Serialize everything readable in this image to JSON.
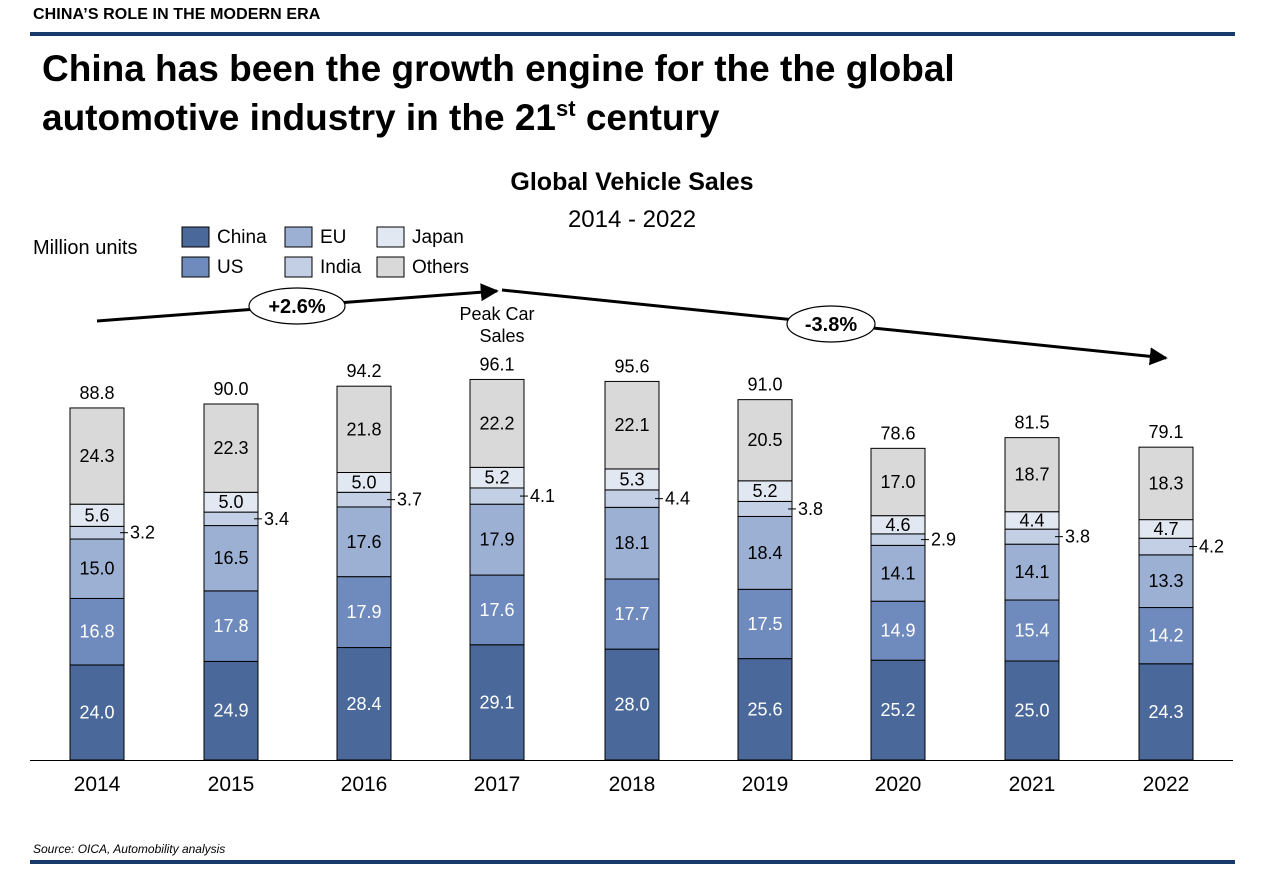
{
  "section_label": "CHINA’S ROLE IN THE MODERN ERA",
  "headline": {
    "line1": "China has been the growth engine for the the global",
    "line2_prefix": "automotive industry in the 21",
    "line2_sup": "st",
    "line2_suffix": " century"
  },
  "source": "Source: OICA, Automobility analysis",
  "colors": {
    "China": "#4a6899",
    "US": "#6f8bbd",
    "EU": "#9bb0d3",
    "India": "#c2cfe5",
    "Japan": "#e2e8f2",
    "Others": "#d9d9d9",
    "rule": "#173a6b"
  },
  "chart_data": {
    "type": "bar",
    "stacked": true,
    "title": "Global Vehicle Sales",
    "subtitle": "2014 - 2022",
    "ylabel": "Million units",
    "categories": [
      "2014",
      "2015",
      "2016",
      "2017",
      "2018",
      "2019",
      "2020",
      "2021",
      "2022"
    ],
    "series": [
      {
        "name": "China",
        "values": [
          24.0,
          24.9,
          28.4,
          29.1,
          28.0,
          25.6,
          25.2,
          25.0,
          24.3
        ]
      },
      {
        "name": "US",
        "values": [
          16.8,
          17.8,
          17.9,
          17.6,
          17.7,
          17.5,
          14.9,
          15.4,
          14.2
        ]
      },
      {
        "name": "EU",
        "values": [
          15.0,
          16.5,
          17.6,
          17.9,
          18.1,
          18.4,
          14.1,
          14.1,
          13.3
        ]
      },
      {
        "name": "India",
        "values": [
          3.2,
          3.4,
          3.7,
          4.1,
          4.4,
          3.8,
          2.9,
          3.8,
          4.2
        ]
      },
      {
        "name": "Japan",
        "values": [
          5.6,
          5.0,
          5.0,
          5.2,
          5.3,
          5.2,
          4.6,
          4.4,
          4.7
        ]
      },
      {
        "name": "Others",
        "values": [
          24.3,
          22.3,
          21.8,
          22.2,
          22.1,
          20.5,
          17.0,
          18.7,
          18.3
        ]
      }
    ],
    "totals": [
      88.8,
      90.0,
      94.2,
      96.1,
      95.6,
      91.0,
      78.6,
      81.5,
      79.1
    ],
    "legend_order": [
      "China",
      "EU",
      "Japan",
      "US",
      "India",
      "Others"
    ],
    "annotations": [
      {
        "text": "+2.6%",
        "from": "2014",
        "to": "2017"
      },
      {
        "text": "Peak Car Sales",
        "at": "2017"
      },
      {
        "text": "-3.8%",
        "from": "2017",
        "to": "2022"
      }
    ],
    "ylim": [
      0,
      100
    ]
  }
}
